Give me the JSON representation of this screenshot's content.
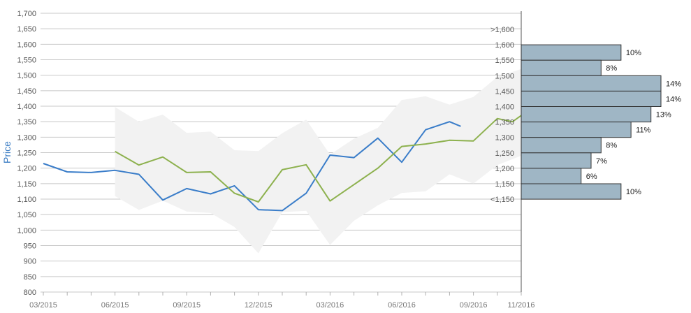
{
  "chart_data": {
    "type": "line",
    "ylabel": "Price",
    "ylim": [
      800,
      1700
    ],
    "y_ticks": [
      "800",
      "850",
      "900",
      "950",
      "1,000",
      "1,050",
      "1,100",
      "1,150",
      "1,200",
      "1,250",
      "1,300",
      "1,350",
      "1,400",
      "1,450",
      "1,500",
      "1,550",
      "1,600",
      "1,650",
      "1,700"
    ],
    "x_ticks": [
      "03/2015",
      "06/2015",
      "09/2015",
      "12/2015",
      "03/2016",
      "06/2016",
      "09/2016",
      "11/2016"
    ],
    "xlim": [
      "2015-03",
      "2016-11"
    ],
    "grid": true,
    "series": [
      {
        "color": "#3a7dc9",
        "points": [
          [
            "2015-03",
            1215
          ],
          [
            "2015-04",
            1188
          ],
          [
            "2015-05",
            1186
          ],
          [
            "2015-06",
            1193
          ],
          [
            "2015-07",
            1180
          ],
          [
            "2015-08",
            1097
          ],
          [
            "2015-09",
            1134
          ],
          [
            "2015-10",
            1117
          ],
          [
            "2015-11",
            1143
          ],
          [
            "2015-12",
            1066
          ],
          [
            "2016-01",
            1063
          ],
          [
            "2016-02",
            1119
          ],
          [
            "2016-03",
            1242
          ],
          [
            "2016-04",
            1234
          ],
          [
            "2016-05",
            1297
          ],
          [
            "2016-06",
            1219
          ],
          [
            "2016-07",
            1324
          ],
          [
            "2016-08",
            1350
          ],
          [
            "2016-08-15",
            1335
          ]
        ]
      },
      {
        "color": "#8db14e",
        "points": [
          [
            "2015-06",
            1254
          ],
          [
            "2015-07",
            1210
          ],
          [
            "2015-08",
            1236
          ],
          [
            "2015-09",
            1186
          ],
          [
            "2015-10",
            1188
          ],
          [
            "2015-11",
            1119
          ],
          [
            "2015-12",
            1091
          ],
          [
            "2016-01",
            1195
          ],
          [
            "2016-02",
            1211
          ],
          [
            "2016-03",
            1094
          ],
          [
            "2016-05",
            1200
          ],
          [
            "2016-06",
            1270
          ],
          [
            "2016-07",
            1278
          ],
          [
            "2016-08",
            1290
          ],
          [
            "2016-09",
            1288
          ],
          [
            "2016-10",
            1360
          ],
          [
            "2016-10-20",
            1350
          ],
          [
            "2016-11",
            1370
          ]
        ]
      }
    ],
    "band": {
      "color": "#f2f2f2",
      "upper": [
        [
          "2015-06",
          1397
        ],
        [
          "2015-07",
          1350
        ],
        [
          "2015-08",
          1373
        ],
        [
          "2015-09",
          1314
        ],
        [
          "2015-10",
          1318
        ],
        [
          "2015-11",
          1258
        ],
        [
          "2015-12",
          1255
        ],
        [
          "2016-01",
          1313
        ],
        [
          "2016-02",
          1357
        ],
        [
          "2016-03",
          1244
        ],
        [
          "2016-04",
          1295
        ],
        [
          "2016-05",
          1330
        ],
        [
          "2016-06",
          1420
        ],
        [
          "2016-07",
          1432
        ],
        [
          "2016-08",
          1405
        ],
        [
          "2016-09",
          1430
        ],
        [
          "2016-10",
          1495
        ],
        [
          "2016-11",
          1520
        ]
      ],
      "lower": [
        [
          "2016-11",
          1240
        ],
        [
          "2016-10",
          1210
        ],
        [
          "2016-09",
          1150
        ],
        [
          "2016-08",
          1180
        ],
        [
          "2016-07",
          1125
        ],
        [
          "2016-06",
          1120
        ],
        [
          "2016-05",
          1080
        ],
        [
          "2016-04",
          1030
        ],
        [
          "2016-03",
          952
        ],
        [
          "2016-02",
          1062
        ],
        [
          "2016-01",
          1058
        ],
        [
          "2015-12",
          925
        ],
        [
          "2015-11",
          1010
        ],
        [
          "2015-10",
          1055
        ],
        [
          "2015-09",
          1060
        ],
        [
          "2015-08",
          1095
        ],
        [
          "2015-07",
          1065
        ],
        [
          "2015-06",
          1110
        ]
      ]
    },
    "histogram": {
      "orientation": "horizontal",
      "fill": "#9fb6c5",
      "stroke": "#333333",
      "bins": [
        {
          "label": ">1,600",
          "percent": null
        },
        {
          "label": "1,600",
          "percent": 10,
          "percent_label": "10%"
        },
        {
          "label": "1,550",
          "percent": 8,
          "percent_label": "8%"
        },
        {
          "label": "1,500",
          "percent": 14,
          "percent_label": "14%"
        },
        {
          "label": "1,450",
          "percent": 14,
          "percent_label": "14%"
        },
        {
          "label": "1,400",
          "percent": 13,
          "percent_label": "13%"
        },
        {
          "label": "1,350",
          "percent": 11,
          "percent_label": "11%"
        },
        {
          "label": "1,300",
          "percent": 8,
          "percent_label": "8%"
        },
        {
          "label": "1,250",
          "percent": 7,
          "percent_label": "7%"
        },
        {
          "label": "1,200",
          "percent": 6,
          "percent_label": "6%"
        },
        {
          "label": "1,150",
          "percent": 10,
          "percent_label": "10%"
        },
        {
          "label": "<1,150",
          "percent": null
        }
      ]
    }
  }
}
